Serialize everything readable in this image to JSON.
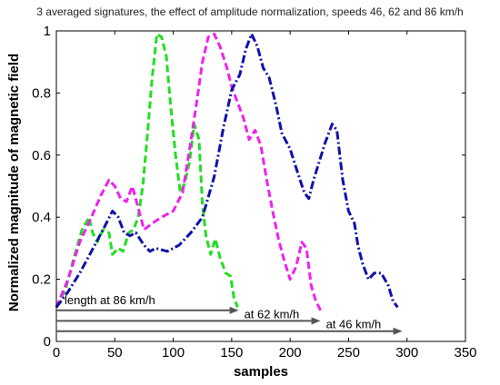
{
  "chart_data": {
    "type": "line",
    "title": "3 averaged signatures, the effect of amplitude normalization, speeds 46, 62 and 86 km/h",
    "xlabel": "samples",
    "ylabel": "Normalized magnitude of magnetic field",
    "xlim": [
      0,
      350
    ],
    "ylim": [
      0,
      1
    ],
    "xticks": [
      "0",
      "50",
      "100",
      "150",
      "200",
      "250",
      "300",
      "350"
    ],
    "yticks": [
      "0",
      "0.2",
      "0.4",
      "0.6",
      "0.8",
      "1"
    ],
    "grid": false,
    "series": [
      {
        "color": "#22dd22",
        "dash": "dashed",
        "points": [
          [
            0,
            0.11
          ],
          [
            8,
            0.17
          ],
          [
            15,
            0.27
          ],
          [
            22,
            0.36
          ],
          [
            28,
            0.4
          ],
          [
            31,
            0.35
          ],
          [
            35,
            0.32
          ],
          [
            40,
            0.36
          ],
          [
            45,
            0.35
          ],
          [
            48,
            0.28
          ],
          [
            53,
            0.3
          ],
          [
            57,
            0.29
          ],
          [
            62,
            0.35
          ],
          [
            66,
            0.36
          ],
          [
            70,
            0.4
          ],
          [
            74,
            0.5
          ],
          [
            78,
            0.67
          ],
          [
            82,
            0.85
          ],
          [
            86,
            0.99
          ],
          [
            90,
            0.98
          ],
          [
            94,
            0.92
          ],
          [
            98,
            0.75
          ],
          [
            102,
            0.6
          ],
          [
            106,
            0.48
          ],
          [
            110,
            0.51
          ],
          [
            114,
            0.58
          ],
          [
            118,
            0.7
          ],
          [
            122,
            0.65
          ],
          [
            125,
            0.44
          ],
          [
            128,
            0.34
          ],
          [
            132,
            0.28
          ],
          [
            136,
            0.33
          ],
          [
            140,
            0.27
          ],
          [
            145,
            0.22
          ],
          [
            149,
            0.21
          ],
          [
            152,
            0.14
          ],
          [
            155,
            0.11
          ]
        ]
      },
      {
        "color": "#ee22ee",
        "dash": "dashed",
        "points": [
          [
            0,
            0.11
          ],
          [
            10,
            0.2
          ],
          [
            20,
            0.32
          ],
          [
            30,
            0.4
          ],
          [
            38,
            0.47
          ],
          [
            45,
            0.52
          ],
          [
            50,
            0.5
          ],
          [
            55,
            0.46
          ],
          [
            60,
            0.45
          ],
          [
            65,
            0.5
          ],
          [
            70,
            0.43
          ],
          [
            75,
            0.36
          ],
          [
            82,
            0.38
          ],
          [
            90,
            0.4
          ],
          [
            100,
            0.42
          ],
          [
            108,
            0.48
          ],
          [
            114,
            0.62
          ],
          [
            120,
            0.77
          ],
          [
            125,
            0.9
          ],
          [
            130,
            0.98
          ],
          [
            135,
            0.99
          ],
          [
            140,
            0.95
          ],
          [
            146,
            0.88
          ],
          [
            150,
            0.82
          ],
          [
            155,
            0.77
          ],
          [
            160,
            0.72
          ],
          [
            165,
            0.65
          ],
          [
            170,
            0.68
          ],
          [
            175,
            0.63
          ],
          [
            180,
            0.52
          ],
          [
            185,
            0.42
          ],
          [
            190,
            0.33
          ],
          [
            195,
            0.26
          ],
          [
            200,
            0.2
          ],
          [
            205,
            0.24
          ],
          [
            210,
            0.32
          ],
          [
            214,
            0.3
          ],
          [
            218,
            0.18
          ],
          [
            222,
            0.13
          ],
          [
            226,
            0.1
          ]
        ]
      },
      {
        "color": "#1010aa",
        "dash": "dashdot",
        "points": [
          [
            0,
            0.11
          ],
          [
            10,
            0.16
          ],
          [
            20,
            0.22
          ],
          [
            30,
            0.29
          ],
          [
            40,
            0.36
          ],
          [
            48,
            0.42
          ],
          [
            53,
            0.4
          ],
          [
            58,
            0.35
          ],
          [
            63,
            0.34
          ],
          [
            68,
            0.35
          ],
          [
            75,
            0.31
          ],
          [
            80,
            0.29
          ],
          [
            85,
            0.3
          ],
          [
            95,
            0.29
          ],
          [
            105,
            0.31
          ],
          [
            115,
            0.35
          ],
          [
            125,
            0.4
          ],
          [
            135,
            0.53
          ],
          [
            143,
            0.69
          ],
          [
            150,
            0.81
          ],
          [
            157,
            0.86
          ],
          [
            162,
            0.94
          ],
          [
            167,
            0.99
          ],
          [
            172,
            0.95
          ],
          [
            177,
            0.88
          ],
          [
            182,
            0.85
          ],
          [
            188,
            0.76
          ],
          [
            193,
            0.67
          ],
          [
            200,
            0.62
          ],
          [
            205,
            0.56
          ],
          [
            212,
            0.48
          ],
          [
            216,
            0.46
          ],
          [
            220,
            0.52
          ],
          [
            225,
            0.58
          ],
          [
            230,
            0.64
          ],
          [
            236,
            0.7
          ],
          [
            240,
            0.68
          ],
          [
            245,
            0.52
          ],
          [
            250,
            0.42
          ],
          [
            255,
            0.38
          ],
          [
            258,
            0.31
          ],
          [
            262,
            0.25
          ],
          [
            267,
            0.2
          ],
          [
            272,
            0.22
          ],
          [
            278,
            0.22
          ],
          [
            284,
            0.18
          ],
          [
            288,
            0.13
          ],
          [
            292,
            0.11
          ]
        ]
      }
    ],
    "arrows": [
      {
        "label": "length at 86 km/h",
        "y": 0.1,
        "x_start": 0,
        "x_end": 156
      },
      {
        "label": "at 62 km/h",
        "y": 0.066,
        "x_start": 0,
        "x_end": 226
      },
      {
        "label": "at 46 km/h",
        "y": 0.033,
        "x_start": 0,
        "x_end": 296
      }
    ]
  }
}
